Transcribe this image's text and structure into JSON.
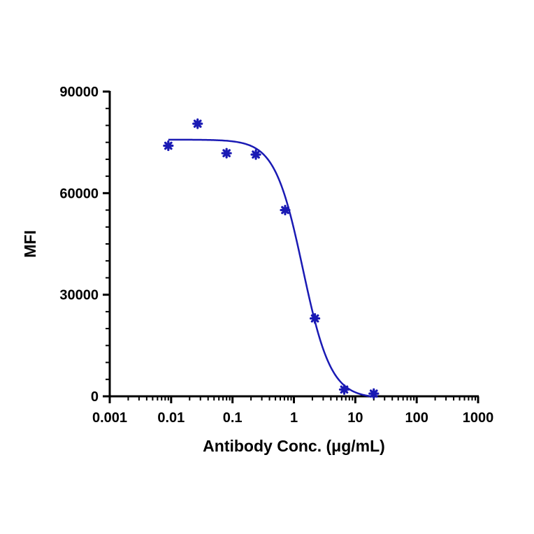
{
  "chart_data": {
    "type": "scatter",
    "xlabel": "Antibody Conc. (μg/mL)",
    "ylabel": "MFI",
    "x_scale": "log",
    "xlim": [
      0.001,
      1000
    ],
    "ylim": [
      0,
      90000
    ],
    "x_ticks": [
      0.001,
      0.01,
      0.1,
      1,
      10,
      100,
      1000
    ],
    "x_tick_labels": [
      "0.001",
      "0.01",
      "0.1",
      "1",
      "10",
      "100",
      "1000"
    ],
    "y_ticks": [
      0,
      30000,
      60000,
      90000
    ],
    "y_tick_labels": [
      "0",
      "30000",
      "60000",
      "90000"
    ],
    "grid": false,
    "color": "#1a1ab4",
    "series": [
      {
        "marker": "asterisk",
        "x": [
          0.009,
          0.027,
          0.08,
          0.24,
          0.72,
          2.2,
          6.6,
          20
        ],
        "y": [
          74000,
          80500,
          71800,
          71400,
          55000,
          23000,
          2000,
          800
        ]
      }
    ],
    "fit": {
      "model": "4PL",
      "top": 75800,
      "bottom": -600,
      "ic50": 1.4,
      "hill": 1.9
    }
  }
}
